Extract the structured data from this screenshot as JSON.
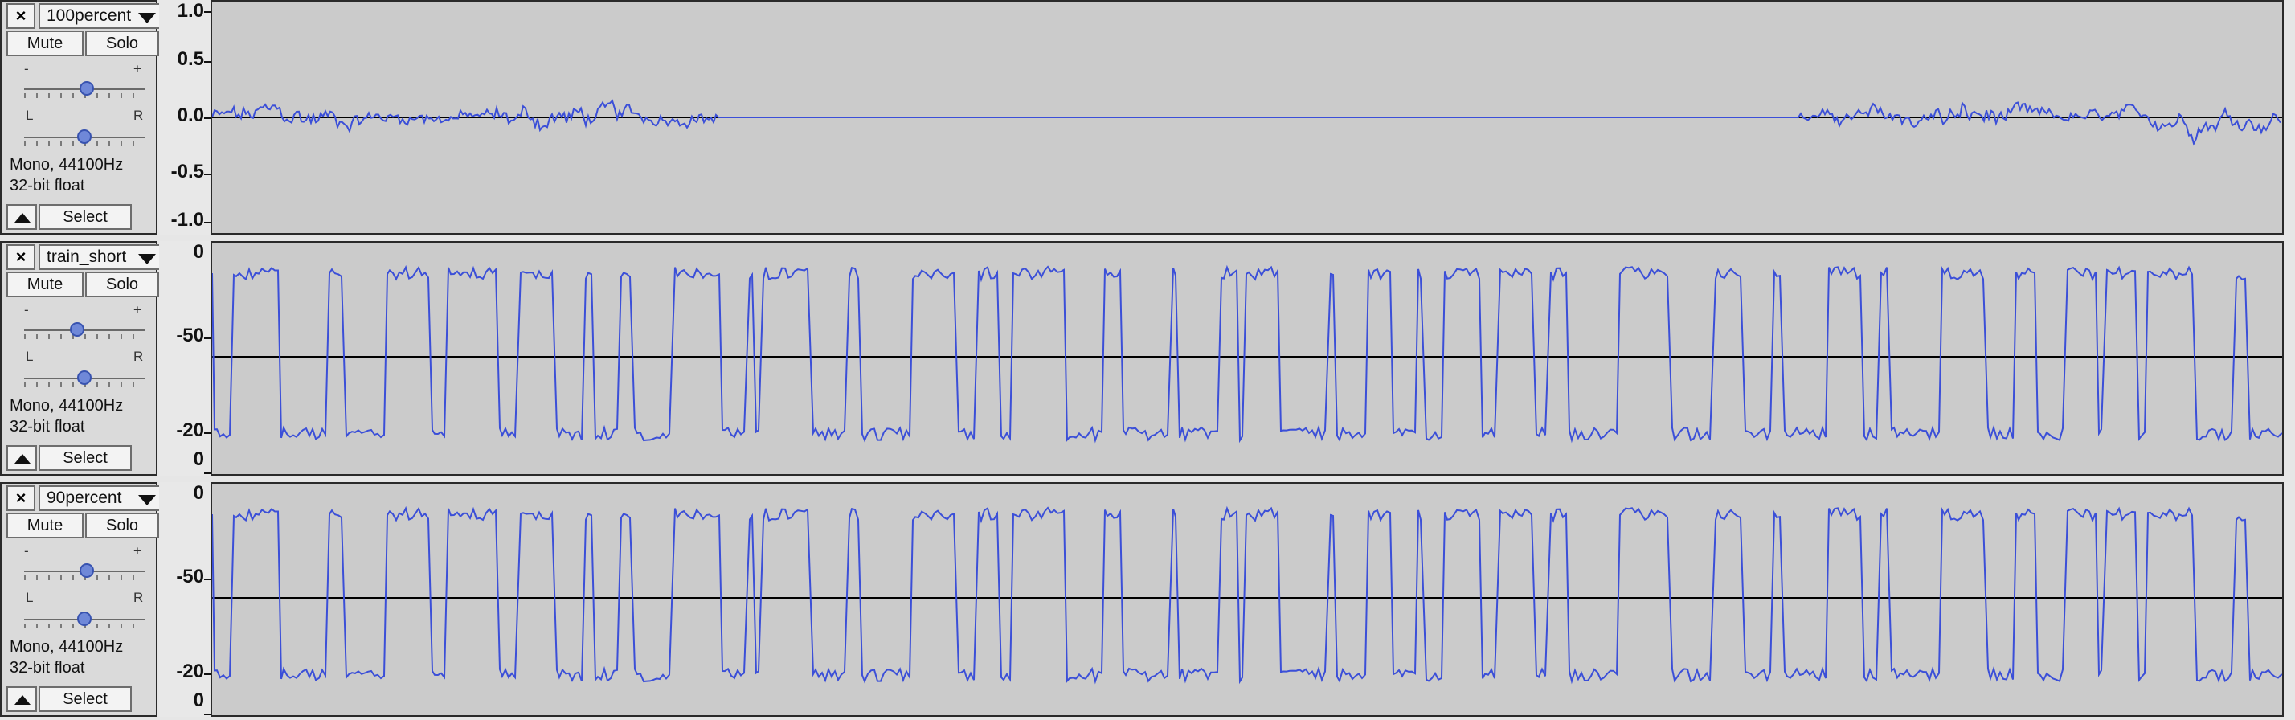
{
  "tracks": [
    {
      "name": "100percent",
      "mute_label": "Mute",
      "solo_label": "Solo",
      "gain_minus": "-",
      "gain_plus": "+",
      "pan_left": "L",
      "pan_right": "R",
      "gain_level": 0.52,
      "pan_level": 0.5,
      "format": "Mono, 44100Hz",
      "sample_format": "32-bit float",
      "select_label": "Select",
      "scale_labels": [
        "1.0",
        "0.5",
        "0.0",
        "-0.5",
        "-1.0"
      ]
    },
    {
      "name": "train_short",
      "mute_label": "Mute",
      "solo_label": "Solo",
      "gain_minus": "-",
      "gain_plus": "+",
      "pan_left": "L",
      "pan_right": "R",
      "gain_level": 0.44,
      "pan_level": 0.5,
      "format": "Mono, 44100Hz",
      "sample_format": "32-bit float",
      "select_label": "Select",
      "scale_labels": [
        "0",
        "-50",
        "-20",
        "0"
      ]
    },
    {
      "name": "90percent",
      "mute_label": "Mute",
      "solo_label": "Solo",
      "gain_minus": "-",
      "gain_plus": "+",
      "pan_left": "L",
      "pan_right": "R",
      "gain_level": 0.52,
      "pan_level": 0.5,
      "format": "Mono, 44100Hz",
      "sample_format": "32-bit float",
      "select_label": "Select",
      "scale_labels": [
        "0",
        "-50",
        "-20",
        "0"
      ]
    }
  ],
  "colors": {
    "waveform": "#3b4fd8",
    "background": "#cbcbcb",
    "panel": "#dadada",
    "zero_line": "#000000"
  }
}
